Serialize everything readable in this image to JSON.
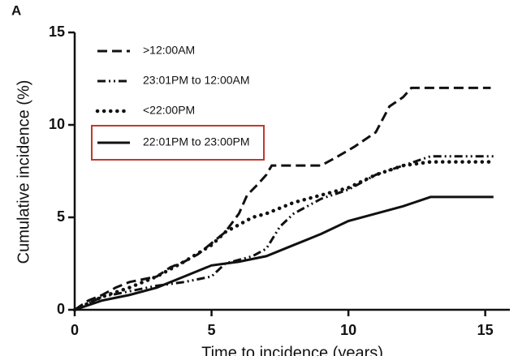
{
  "chart_data": {
    "type": "line",
    "panel_label": "A",
    "y_label": "Cumulative incidence (%)",
    "x_label": "Time to incidence (years)",
    "xlim": [
      0,
      15.9
    ],
    "ylim": [
      0,
      15
    ],
    "xticks": [
      0,
      5,
      10,
      15
    ],
    "yticks": [
      0,
      5,
      10,
      15
    ],
    "series": [
      {
        "name": ">12:00AM",
        "color": "#111111",
        "style": "dashed",
        "x": [
          0,
          0.5,
          1,
          1.5,
          2,
          3,
          3.5,
          4,
          4.5,
          5,
          5.5,
          6,
          6.3,
          6.7,
          7,
          7.2,
          8,
          9,
          9.5,
          10.2,
          11,
          11.5,
          12,
          12.3,
          15.2
        ],
        "values": [
          0,
          0.5,
          0.8,
          1.2,
          1.5,
          1.8,
          2.3,
          2.6,
          3.0,
          3.6,
          4.2,
          5.2,
          6.2,
          6.8,
          7.3,
          7.8,
          7.8,
          7.8,
          8.2,
          8.8,
          9.6,
          11,
          11.5,
          12,
          12
        ]
      },
      {
        "name": "23:01PM to 12:00AM",
        "color": "#111111",
        "style": "dashdot",
        "x": [
          0,
          1,
          2,
          3,
          4,
          5,
          5.5,
          6.5,
          7,
          7.5,
          8,
          8.5,
          9,
          10,
          11,
          12,
          13,
          15.3
        ],
        "values": [
          0,
          0.7,
          1.0,
          1.3,
          1.5,
          1.8,
          2.5,
          2.9,
          3.3,
          4.5,
          5.2,
          5.6,
          6.0,
          6.5,
          7.3,
          7.8,
          8.3,
          8.3
        ]
      },
      {
        "name": "<22:00PM",
        "color": "#111111",
        "style": "dotted",
        "x": [
          0,
          1,
          2,
          3,
          4,
          5,
          5.5,
          6,
          6.5,
          7,
          8,
          9,
          10,
          11,
          12,
          13,
          15.3
        ],
        "values": [
          0,
          0.7,
          1.2,
          1.8,
          2.6,
          3.5,
          4.2,
          4.6,
          5.0,
          5.2,
          5.8,
          6.2,
          6.6,
          7.3,
          7.8,
          8.0,
          8.0
        ]
      },
      {
        "name": "22:01PM to 23:00PM",
        "color": "#111111",
        "style": "solid",
        "x": [
          0,
          1,
          2,
          3,
          4,
          5,
          6,
          7,
          8,
          9,
          10,
          11,
          12,
          13,
          15.3
        ],
        "values": [
          0,
          0.5,
          0.8,
          1.2,
          1.8,
          2.4,
          2.6,
          2.9,
          3.5,
          4.1,
          4.8,
          5.2,
          5.6,
          6.1,
          6.1
        ]
      }
    ]
  }
}
